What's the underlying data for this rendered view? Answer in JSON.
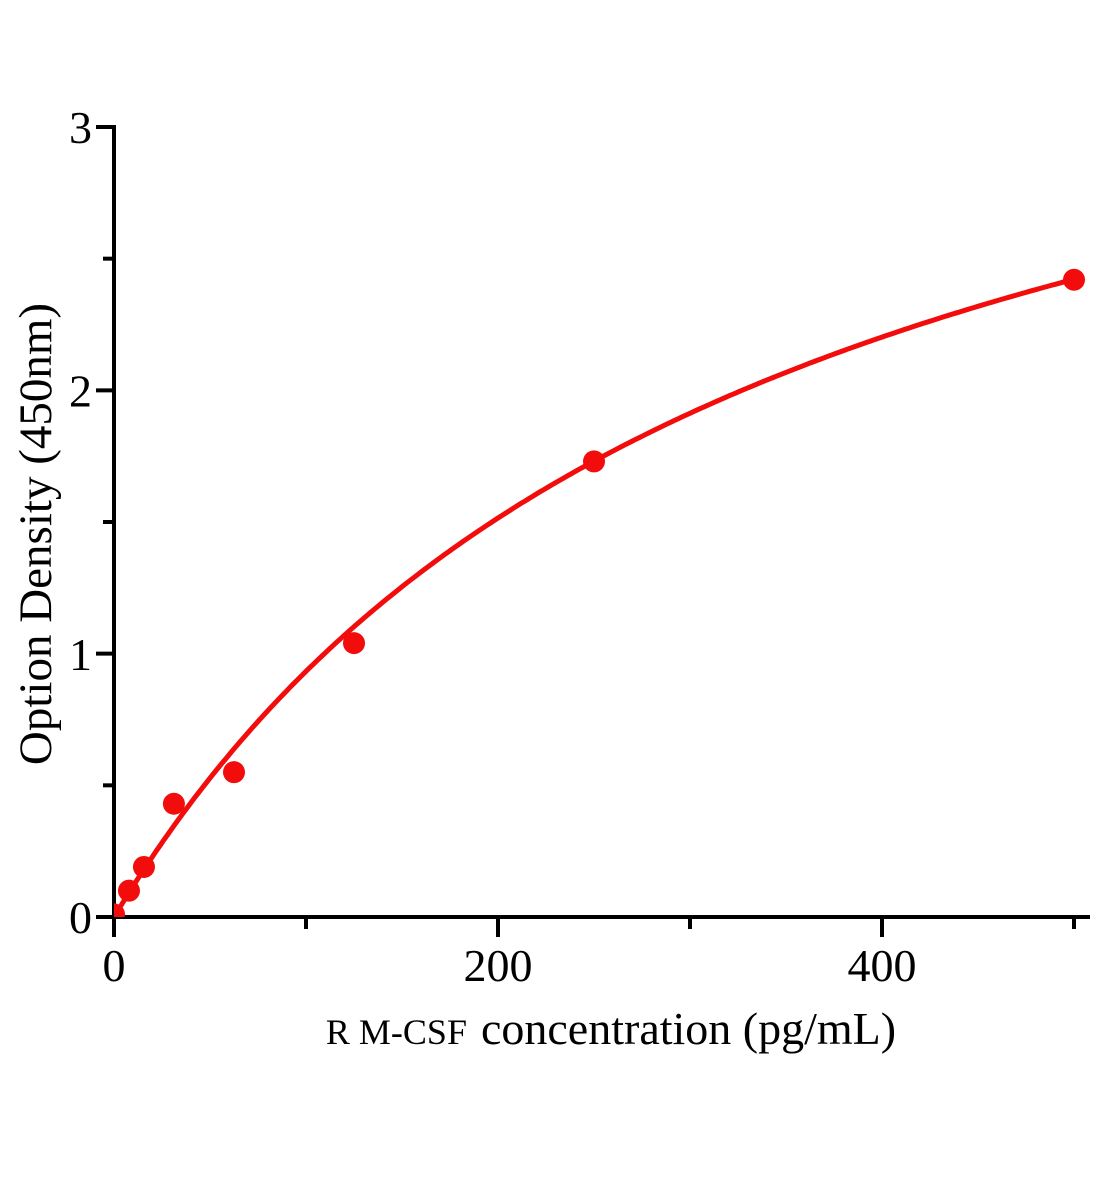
{
  "chart_data": {
    "type": "scatter",
    "title": "",
    "xlabel_part1": "R M-CSF",
    "xlabel_part2": "concentration（pg/mL）",
    "xlabel_full": "R M-CSF  concentration（pg/mL）",
    "ylabel": "Option Density（450nm）",
    "points": [
      {
        "x": 0,
        "y": 0.01
      },
      {
        "x": 7.8,
        "y": 0.1
      },
      {
        "x": 15.6,
        "y": 0.19
      },
      {
        "x": 31.2,
        "y": 0.43
      },
      {
        "x": 62.5,
        "y": 0.55
      },
      {
        "x": 125,
        "y": 1.04
      },
      {
        "x": 250,
        "y": 1.73
      },
      {
        "x": 500,
        "y": 2.42
      }
    ],
    "fit_curve": {
      "model": "y = Vmax*x / (K + x)",
      "vmax": 4.03,
      "k": 332,
      "x_start": 0,
      "x_end": 500
    },
    "axes": {
      "xlim": [
        0,
        508
      ],
      "ylim": [
        0,
        3
      ],
      "xticks_major": [
        {
          "value": 0,
          "label": "0"
        },
        {
          "value": 200,
          "label": "200"
        },
        {
          "value": 400,
          "label": "400"
        }
      ],
      "xticks_minor": [
        100,
        300,
        500
      ],
      "yticks_major": [
        {
          "value": 0,
          "label": "0"
        },
        {
          "value": 1,
          "label": "1"
        },
        {
          "value": 2,
          "label": "2"
        },
        {
          "value": 3,
          "label": "3"
        }
      ],
      "yticks_minor": [
        0.5,
        1.5,
        2.5
      ],
      "grid": "off",
      "legend": "none"
    },
    "colors": {
      "series": "#f20c0c",
      "axis": "#000000",
      "text": "#000000",
      "background": "#ffffff"
    }
  }
}
